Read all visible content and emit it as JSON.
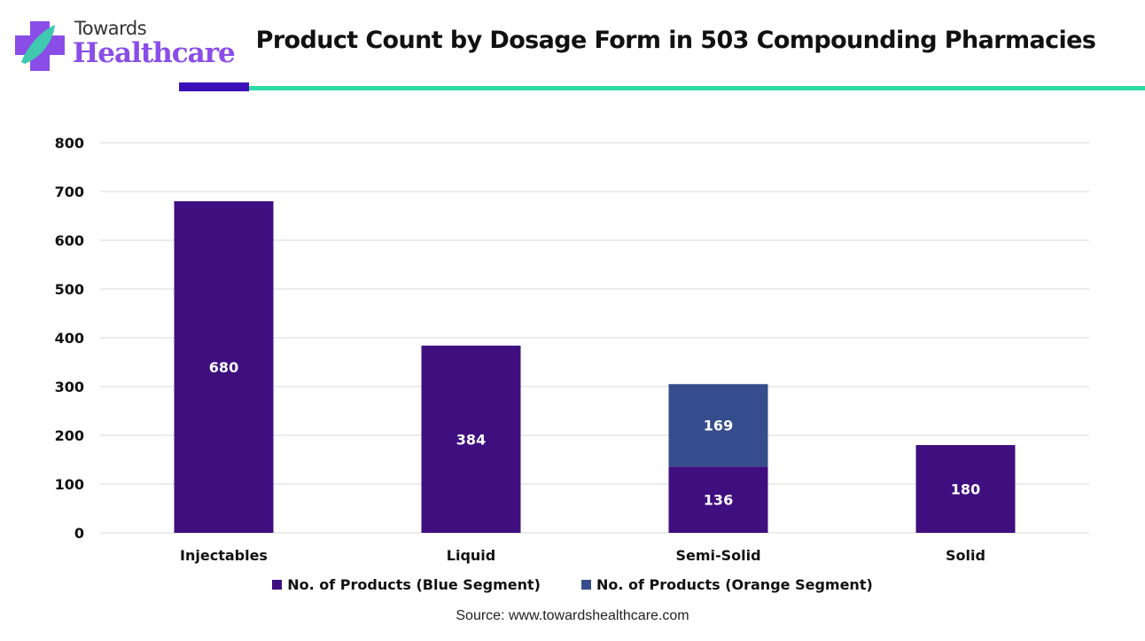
{
  "brand": {
    "line1": "Towards",
    "line2": "Healthcare"
  },
  "colors": {
    "series1": "#3f0f80",
    "series2": "#354d8c",
    "accent_dark": "#3b10b8",
    "accent_teal": "#2edba6"
  },
  "chart_data": {
    "type": "bar",
    "stacked": true,
    "title": "Product Count by Dosage Form in 503 Compounding Pharmacies",
    "categories": [
      "Injectables",
      "Liquid",
      "Semi-Solid",
      "Solid"
    ],
    "series": [
      {
        "name": "No. of Products (Blue Segment)",
        "values": [
          680,
          384,
          136,
          180
        ]
      },
      {
        "name": "No. of Products (Orange Segment)",
        "values": [
          0,
          0,
          169,
          0
        ]
      }
    ],
    "yticks": [
      "0",
      "100",
      "200",
      "300",
      "400",
      "500",
      "600",
      "700",
      "800"
    ],
    "ylim": [
      0,
      800
    ],
    "grid": true,
    "legend_position": "bottom",
    "xlabel": "",
    "ylabel": ""
  },
  "source": "Source: www.towardshealthcare.com"
}
